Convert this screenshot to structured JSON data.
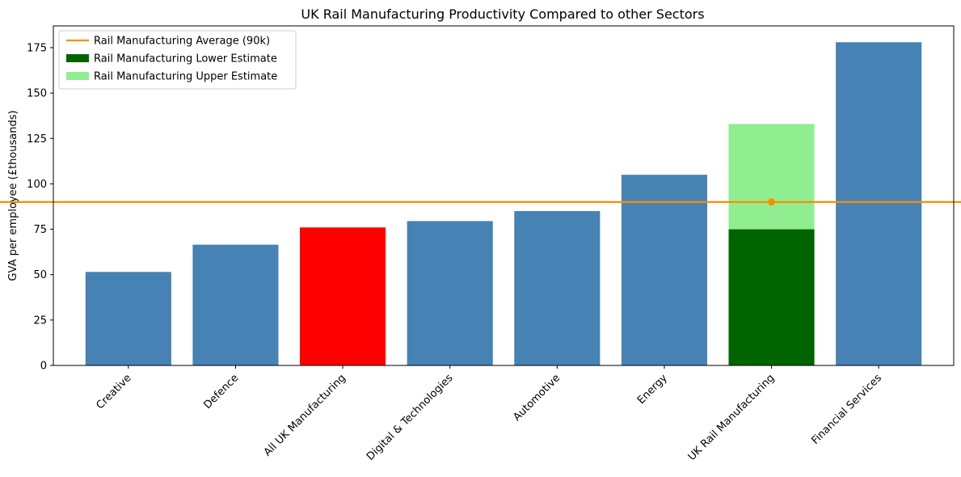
{
  "chart_data": {
    "type": "bar",
    "title": "UK Rail Manufacturing Productivity Compared to other Sectors",
    "xlabel": "",
    "ylabel": "GVA per employee (£thousands)",
    "ylim": [
      0,
      187
    ],
    "yticks": [
      0,
      25,
      50,
      75,
      100,
      125,
      150,
      175
    ],
    "yticklabels": [
      "0",
      "25",
      "50",
      "75",
      "100",
      "125",
      "150",
      "175"
    ],
    "categories": [
      "Creative",
      "Defence",
      "All UK Manufacturing",
      "Digital & Technologies",
      "Automotive",
      "Energy",
      "UK Rail Manufacturing",
      "Financial Services"
    ],
    "values": [
      51.5,
      66.5,
      76,
      79.5,
      85,
      105,
      75,
      178
    ],
    "bar_colors": [
      "#4682b4",
      "#4682b4",
      "#ff0000",
      "#4682b4",
      "#4682b4",
      "#4682b4",
      "#006400",
      "#4682b4"
    ],
    "stacked_upper": {
      "category": "UK Rail Manufacturing",
      "bottom": 75,
      "top": 133,
      "color": "#90ee90",
      "label": "Rail Manufacturing Upper Estimate"
    },
    "average_line": {
      "value": 90,
      "color": "#ff8c00",
      "label": "Rail Manufacturing Average (90k)",
      "marker_category": "UK Rail Manufacturing"
    },
    "legend": {
      "position": "top-left",
      "entries": [
        {
          "label": "Rail Manufacturing Average (90k)",
          "kind": "line",
          "color": "#ff8c00"
        },
        {
          "label": "Rail Manufacturing Lower Estimate",
          "kind": "patch",
          "color": "#006400"
        },
        {
          "label": "Rail Manufacturing Upper Estimate",
          "kind": "patch",
          "color": "#90ee90"
        }
      ]
    }
  }
}
